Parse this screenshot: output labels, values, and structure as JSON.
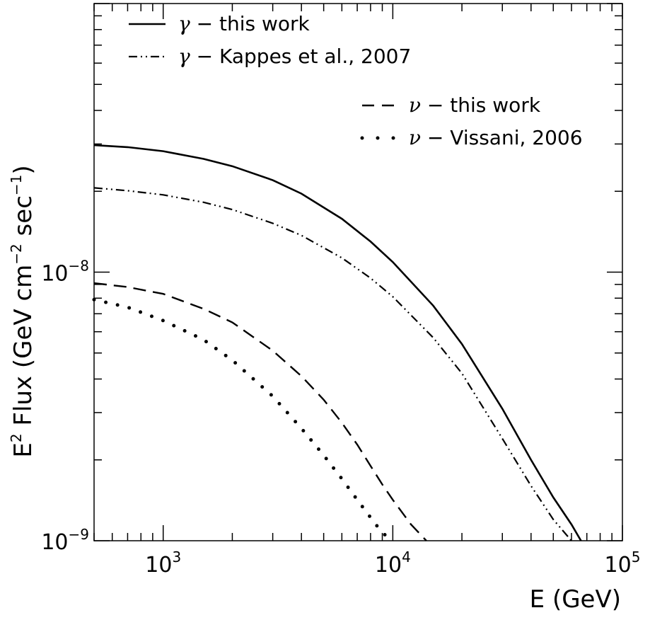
{
  "chart_data": {
    "type": "line",
    "title": "",
    "xlabel": "E (GeV)",
    "ylabel": "E² Flux (GeV cm⁻² sec⁻¹)",
    "ylabel_parts": {
      "pre": "E",
      "sup1": "2",
      "mid": " Flux (GeV cm",
      "sup2": "−2",
      "mid2": " sec",
      "sup3": "−1",
      "post": ")"
    },
    "xscale": "log",
    "yscale": "log",
    "xlim": [
      500,
      100000
    ],
    "ylim": [
      1e-09,
      1e-07
    ],
    "grid": false,
    "legend_position": "top",
    "x_ticks": [
      {
        "value": 1000,
        "base": "10",
        "exp": "3"
      },
      {
        "value": 10000,
        "base": "10",
        "exp": "4"
      },
      {
        "value": 100000,
        "base": "10",
        "exp": "5"
      }
    ],
    "y_ticks": [
      {
        "value": 1e-09,
        "base": "10",
        "exp": "−9"
      },
      {
        "value": 1e-08,
        "base": "10",
        "exp": "−8"
      }
    ],
    "series": [
      {
        "name": "γ − this work",
        "greek": "γ",
        "label_rest": " − this work",
        "style": "solid",
        "x": [
          500,
          700,
          1000,
          1500,
          2000,
          3000,
          4000,
          6000,
          8000,
          10000,
          15000,
          20000,
          30000,
          40000,
          50000,
          60000,
          66000
        ],
        "y": [
          2.97e-08,
          2.92e-08,
          2.82e-08,
          2.64e-08,
          2.48e-08,
          2.2e-08,
          1.96e-08,
          1.58e-08,
          1.3e-08,
          1.09e-08,
          7.5e-09,
          5.4e-09,
          3.1e-09,
          2e-09,
          1.45e-09,
          1.15e-09,
          1e-09
        ]
      },
      {
        "name": "γ − Kappes et al., 2007",
        "greek": "γ",
        "label_rest": " − Kappes et al., 2007",
        "style": "dashdotdot",
        "x": [
          500,
          700,
          1000,
          1500,
          2000,
          3000,
          4000,
          6000,
          8000,
          10000,
          15000,
          20000,
          30000,
          40000,
          50000,
          60000
        ],
        "y": [
          2.06e-08,
          2.01e-08,
          1.94e-08,
          1.82e-08,
          1.71e-08,
          1.52e-08,
          1.37e-08,
          1.13e-08,
          9.5e-09,
          8.1e-09,
          5.7e-09,
          4.2e-09,
          2.4e-09,
          1.6e-09,
          1.2e-09,
          1e-09
        ]
      },
      {
        "name": "ν − this work",
        "greek": "ν",
        "label_rest": " − this work",
        "style": "dashed",
        "x": [
          500,
          700,
          1000,
          1500,
          2000,
          3000,
          4000,
          5000,
          6000,
          7000,
          8000,
          9000,
          10000,
          12000,
          14000
        ],
        "y": [
          9.1e-09,
          8.8e-09,
          8.3e-09,
          7.3e-09,
          6.5e-09,
          5.1e-09,
          4.1e-09,
          3.35e-09,
          2.75e-09,
          2.28e-09,
          1.9e-09,
          1.62e-09,
          1.42e-09,
          1.15e-09,
          1e-09
        ]
      },
      {
        "name": "ν − Vissani, 2006",
        "greek": "ν",
        "label_rest": " − Vissani, 2006",
        "style": "dotted",
        "x": [
          500,
          700,
          1000,
          1500,
          2000,
          3000,
          4000,
          5000,
          6000,
          7000,
          8000,
          9000,
          10000
        ],
        "y": [
          7.9e-09,
          7.4e-09,
          6.6e-09,
          5.6e-09,
          4.7e-09,
          3.45e-09,
          2.62e-09,
          2.08e-09,
          1.7e-09,
          1.42e-09,
          1.22e-09,
          1.07e-09,
          1e-09
        ]
      }
    ]
  }
}
